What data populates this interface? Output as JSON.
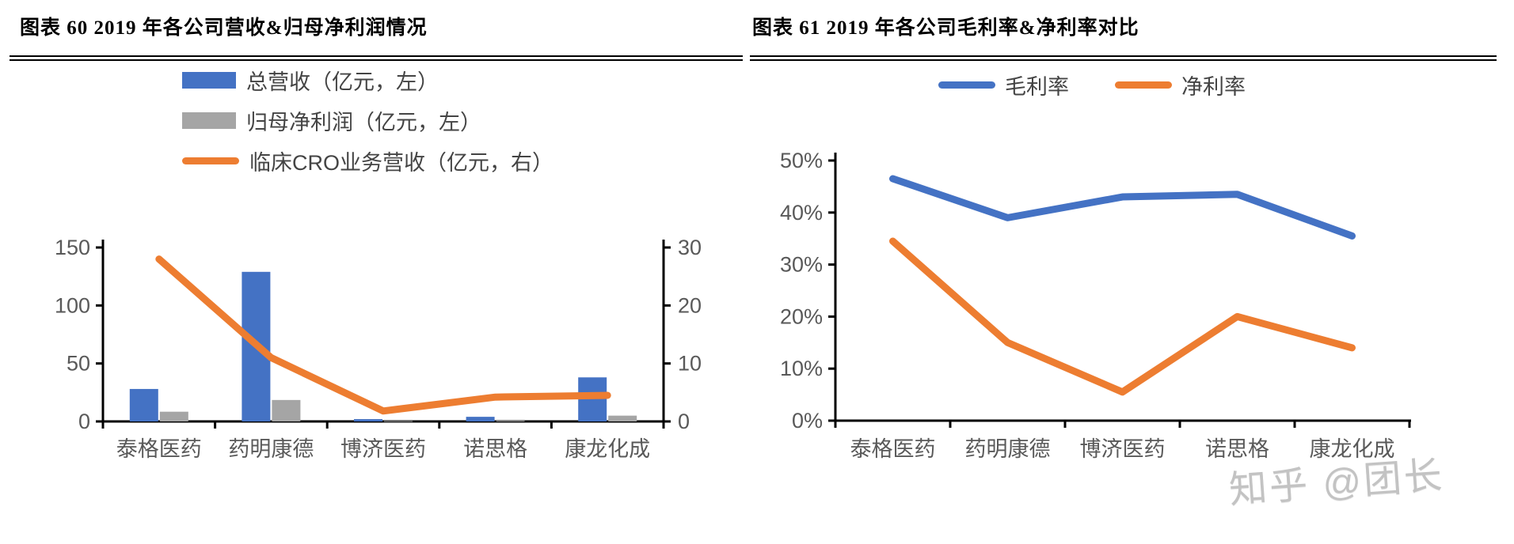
{
  "watermark": {
    "text": "知乎 @团长"
  },
  "charts": [
    {
      "title": "图表 60 2019 年各公司营收&归母净利润情况",
      "chart_data": {
        "type": "combo",
        "categories": [
          "泰格医药",
          "药明康德",
          "博济医药",
          "诺思格",
          "康龙化成"
        ],
        "series": [
          {
            "name": "总营收（亿元，左）",
            "type": "bar",
            "axis": "left",
            "color": "#4472C4",
            "values": [
              28,
              129,
              2,
              4,
              38
            ]
          },
          {
            "name": "归母净利润（亿元，左）",
            "type": "bar",
            "axis": "left",
            "color": "#A5A5A5",
            "values": [
              8.4,
              18.5,
              0.4,
              0.6,
              5
            ]
          },
          {
            "name": "临床CRO业务营收（亿元，右）",
            "type": "line",
            "axis": "right",
            "color": "#ED7D31",
            "values": [
              28,
              11,
              1.8,
              4.2,
              4.5
            ]
          }
        ],
        "left_axis": {
          "ticks": [
            "0",
            "50",
            "100",
            "150"
          ],
          "min": 0,
          "max": 150
        },
        "right_axis": {
          "ticks": [
            "0",
            "10",
            "20",
            "30"
          ],
          "min": 0,
          "max": 30
        },
        "legend_position": "top-left-stacked",
        "grid": false
      }
    },
    {
      "title": "图表 61 2019 年各公司毛利率&净利率对比",
      "chart_data": {
        "type": "line",
        "categories": [
          "泰格医药",
          "药明康德",
          "博济医药",
          "诺思格",
          "康龙化成"
        ],
        "series": [
          {
            "name": "毛利率",
            "type": "line",
            "axis": "left",
            "color": "#4472C4",
            "values": [
              46.5,
              39,
              43,
              43.5,
              35.5
            ]
          },
          {
            "name": "净利率",
            "type": "line",
            "axis": "left",
            "color": "#ED7D31",
            "values": [
              34.5,
              15,
              5.5,
              20,
              14
            ]
          }
        ],
        "left_axis": {
          "ticks": [
            "0%",
            "10%",
            "20%",
            "30%",
            "40%",
            "50%"
          ],
          "min": 0,
          "max": 50
        },
        "legend_position": "top-center-horizontal",
        "grid": false
      }
    }
  ]
}
